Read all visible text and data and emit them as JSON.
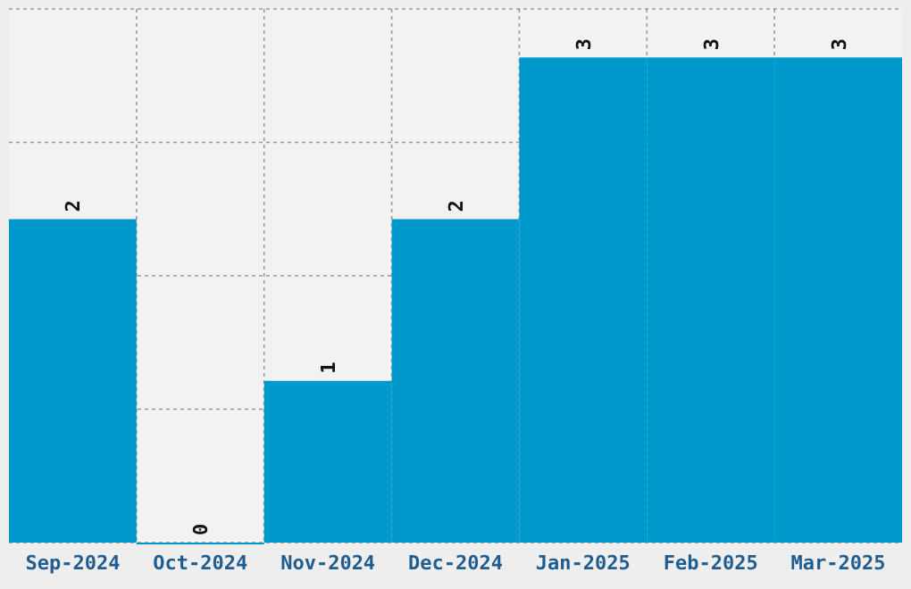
{
  "chart_data": {
    "type": "bar",
    "categories": [
      "Sep-2024",
      "Oct-2024",
      "Nov-2024",
      "Dec-2024",
      "Jan-2025",
      "Feb-2025",
      "Mar-2025"
    ],
    "values": [
      2,
      0,
      1,
      2,
      3,
      3,
      3
    ],
    "color": "#0099cc",
    "data_labels": true,
    "ylim": [
      0,
      3.3
    ],
    "yticks": [
      {
        "value": 0,
        "label": null
      },
      {
        "value": 0.825,
        "label": null
      },
      {
        "value": 1.65,
        "label": null
      },
      {
        "value": 2.475,
        "label": null
      },
      {
        "value": 3.3,
        "label": null
      }
    ],
    "tick_labels": "x",
    "grid": true
  }
}
